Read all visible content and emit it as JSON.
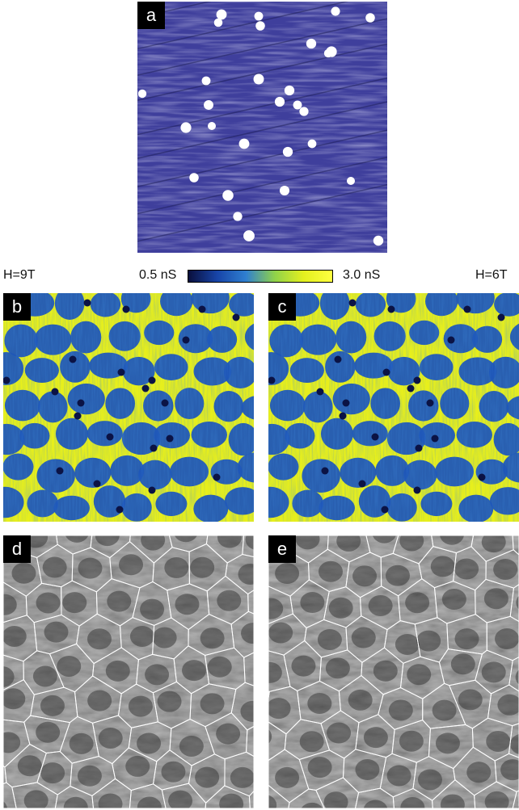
{
  "panels": {
    "a": {
      "label": "a"
    },
    "b": {
      "label": "b"
    },
    "c": {
      "label": "c"
    },
    "d": {
      "label": "d"
    },
    "e": {
      "label": "e"
    }
  },
  "colorbar": {
    "min_label": "0.5 nS",
    "max_label": "3.0 nS",
    "colors": [
      "#0a0f3c",
      "#1744a8",
      "#2f7fd0",
      "#8fd24a",
      "#e3f01f",
      "#ffff40"
    ]
  },
  "field_labels": {
    "left": "H=9T",
    "right": "H=6T"
  },
  "colors": {
    "topography_bg": "#3f3f9c",
    "topography_spot": "#ffffff",
    "map_blue": "#1f56b8",
    "map_yellow": "#e7ef1c",
    "map_dark": "#0b1345",
    "gray_bg": "#6d6d6d",
    "voronoi_line": "#ffffff"
  }
}
